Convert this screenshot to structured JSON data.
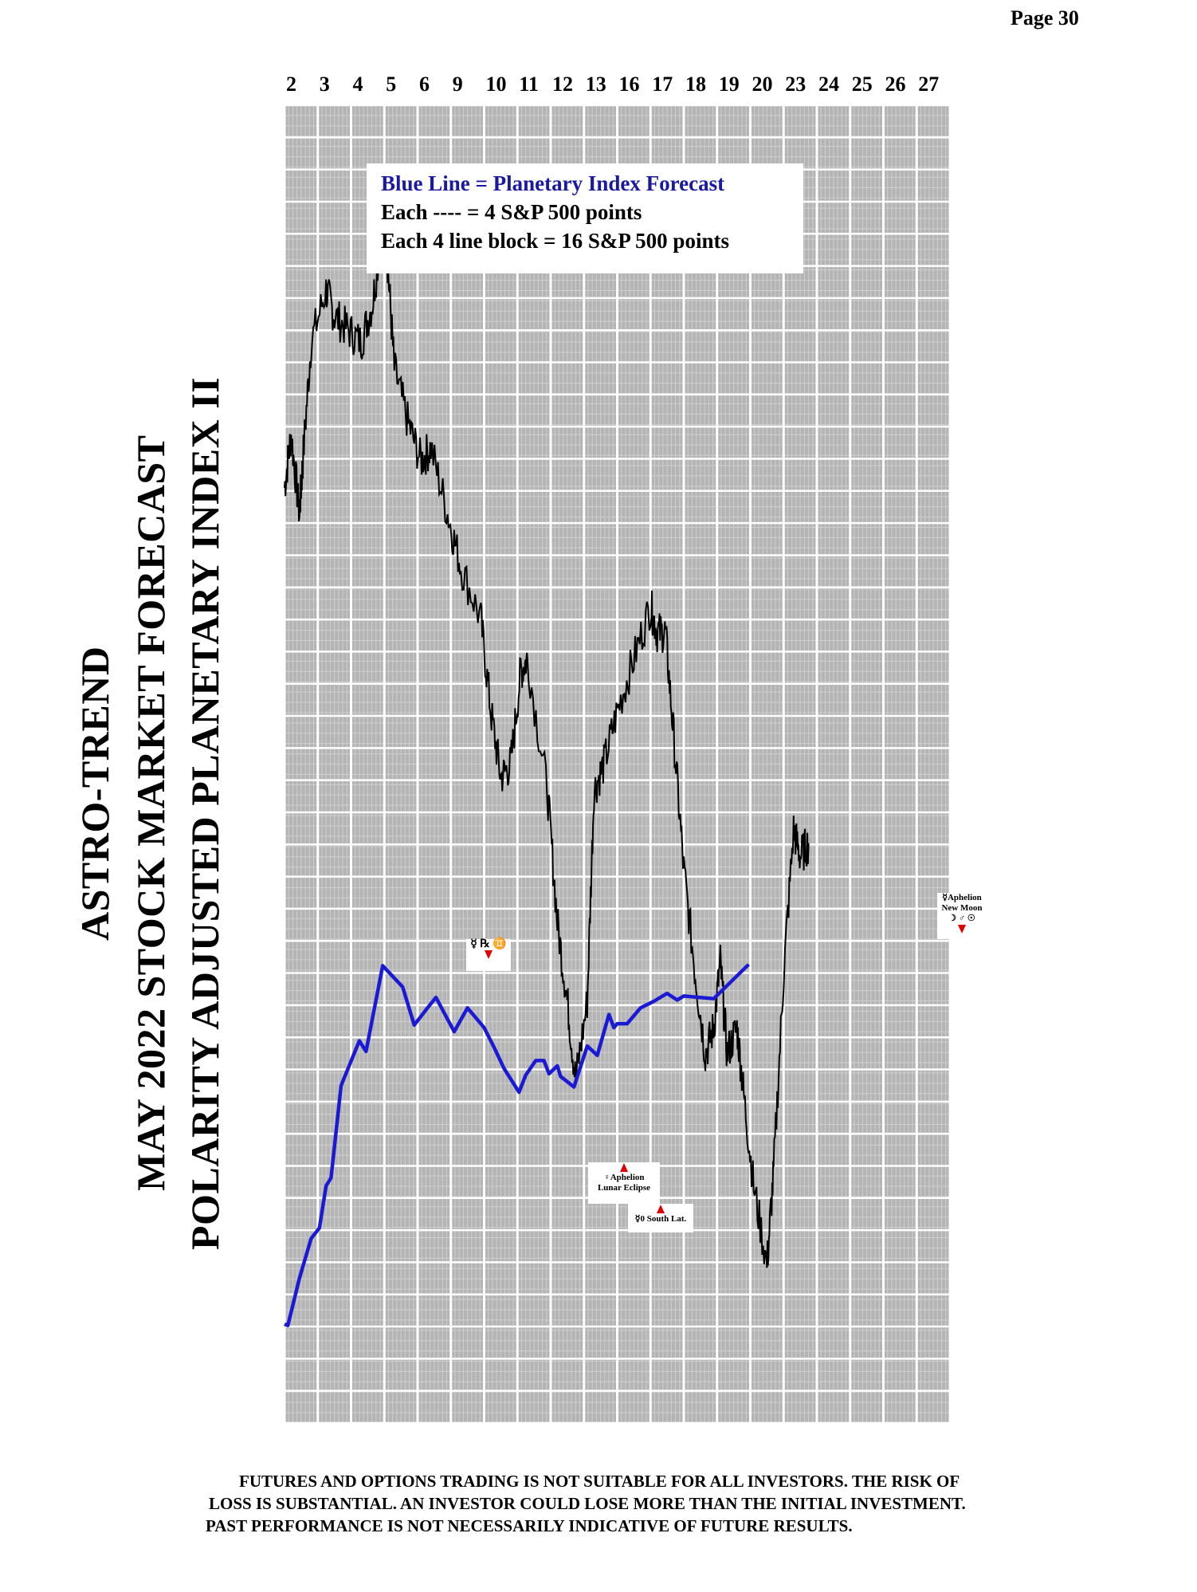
{
  "page": {
    "number": "Page  30"
  },
  "title": {
    "line1": "ASTRO-TREND",
    "line2": "MAY 2022  STOCK MARKET FORECAST",
    "line3": "POLARITY ADJUSTED PLANETARY INDEX II"
  },
  "legend": {
    "line1": "Blue Line = Planetary Index Forecast",
    "line2": "Each ---- =   4 S&P 500 points",
    "line3": "Each 4 line block =  16  S&P 500 points"
  },
  "annotations": {
    "mercury_retrograde": "☿ ℞ ♊",
    "venus_aphelion": "♀Aphelion",
    "lunar_eclipse": "Lunar Eclipse",
    "mercury_south_lat": "☿0 South Lat.",
    "mercury_aphelion": "☿Aphelion",
    "new_moon": "New Moon",
    "new_moon_symbols": "☽ ♂ ☉"
  },
  "disclaimer": {
    "line1": "FUTURES AND OPTIONS TRADING IS NOT SUITABLE FOR ALL INVESTORS.  THE RISK OF",
    "line2": "LOSS IS SUBSTANTIAL.  AN INVESTOR COULD LOSE MORE THAN THE INITIAL INVESTMENT.",
    "line3": "PAST PERFORMANCE IS NOT NECESSARILY INDICATIVE OF FUTURE RESULTS."
  },
  "colors": {
    "forecast": "#1a1ad4",
    "actual": "#000000",
    "grid_fine": "#cfcfcf",
    "grid_major": "#ffffff",
    "grid_bg": "#b4b4b4",
    "arrow": "#e00000"
  },
  "chart_data": {
    "type": "line",
    "categories": [
      "2",
      "3",
      "4",
      "5",
      "6",
      "9",
      "10",
      "11",
      "12",
      "13",
      "16",
      "17",
      "18",
      "19",
      "20",
      "23",
      "24",
      "25",
      "26",
      "27"
    ],
    "ylim": [
      0,
      100
    ],
    "grid": true,
    "series": [
      {
        "values": [
          [
            0,
            7.5
          ],
          [
            0.1,
            7.4
          ],
          [
            0.45,
            11
          ],
          [
            0.8,
            14
          ],
          [
            1.05,
            14.8
          ],
          [
            1.25,
            18
          ],
          [
            1.4,
            18.6
          ],
          [
            1.7,
            25.6
          ],
          [
            2.25,
            29
          ],
          [
            2.45,
            28.2
          ],
          [
            2.95,
            34.7
          ],
          [
            3.55,
            33.1
          ],
          [
            3.9,
            30.2
          ],
          [
            4.3,
            31.5
          ],
          [
            4.55,
            32.3
          ],
          [
            5.1,
            29.7
          ],
          [
            5.5,
            31.5
          ],
          [
            6.0,
            30.0
          ],
          [
            6.3,
            28.5
          ],
          [
            6.6,
            26.9
          ],
          [
            7.05,
            25.1
          ],
          [
            7.25,
            26.4
          ],
          [
            7.55,
            27.5
          ],
          [
            7.8,
            27.5
          ],
          [
            7.95,
            26.5
          ],
          [
            8.2,
            27.1
          ],
          [
            8.3,
            26.3
          ],
          [
            8.7,
            25.5
          ],
          [
            9.1,
            28.6
          ],
          [
            9.4,
            27.9
          ],
          [
            9.75,
            31.0
          ],
          [
            9.9,
            30.0
          ],
          [
            10.0,
            30.3
          ],
          [
            10.3,
            30.3
          ],
          [
            10.7,
            31.5
          ],
          [
            11.1,
            32.0
          ],
          [
            11.5,
            32.6
          ],
          [
            11.8,
            32.1
          ],
          [
            12.0,
            32.4
          ],
          [
            12.9,
            32.2
          ],
          [
            13.95,
            34.8
          ]
        ]
      },
      {
        "values": [
          [
            0,
            71
          ],
          [
            0.2,
            75
          ],
          [
            0.45,
            69
          ],
          [
            0.55,
            73
          ],
          [
            0.8,
            82
          ],
          [
            1.25,
            86
          ],
          [
            1.5,
            84
          ],
          [
            1.9,
            83
          ],
          [
            2.3,
            82
          ],
          [
            2.65,
            85
          ],
          [
            2.95,
            91
          ],
          [
            3.1,
            88
          ],
          [
            3.3,
            80
          ],
          [
            3.7,
            76
          ],
          [
            4.1,
            73
          ],
          [
            4.4,
            74
          ],
          [
            4.9,
            69
          ],
          [
            5.3,
            65
          ],
          [
            5.9,
            61
          ],
          [
            6.2,
            54
          ],
          [
            6.5,
            49
          ],
          [
            6.8,
            50
          ],
          [
            7.1,
            57
          ],
          [
            7.3,
            58
          ],
          [
            7.9,
            48
          ],
          [
            8.2,
            38
          ],
          [
            8.5,
            32
          ],
          [
            8.75,
            26
          ],
          [
            9.1,
            32
          ],
          [
            9.3,
            48
          ],
          [
            9.6,
            50
          ],
          [
            10.0,
            54
          ],
          [
            10.5,
            58
          ],
          [
            11.0,
            62
          ],
          [
            11.2,
            60
          ],
          [
            11.45,
            60
          ],
          [
            11.7,
            52
          ],
          [
            12.0,
            42
          ],
          [
            12.35,
            34
          ],
          [
            12.65,
            28
          ],
          [
            12.9,
            30
          ],
          [
            13.1,
            35
          ],
          [
            13.3,
            28
          ],
          [
            13.6,
            30
          ],
          [
            13.8,
            25
          ],
          [
            14.1,
            18
          ],
          [
            14.5,
            12
          ],
          [
            14.7,
            19
          ],
          [
            15.0,
            34
          ],
          [
            15.3,
            45
          ],
          [
            15.5,
            43
          ],
          [
            15.75,
            44
          ]
        ]
      }
    ]
  }
}
